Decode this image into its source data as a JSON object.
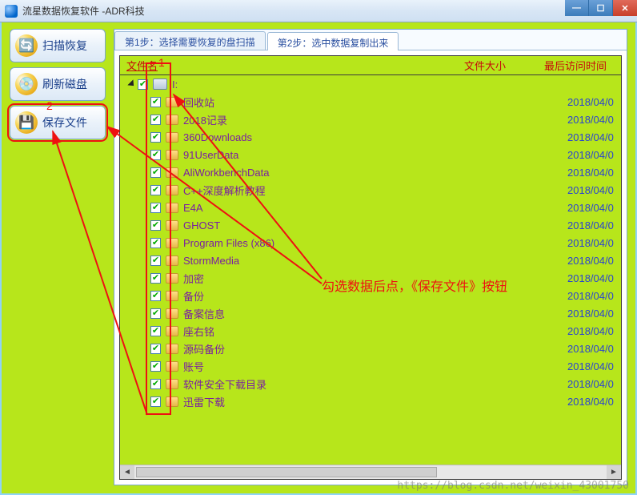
{
  "window": {
    "title": "流星数据恢复软件   -ADR科技"
  },
  "sidebar": {
    "buttons": [
      {
        "label": "扫描恢复",
        "icon_glyph": "🔄"
      },
      {
        "label": "刷新磁盘",
        "icon_glyph": "💿"
      },
      {
        "label": "保存文件",
        "icon_glyph": "💾"
      }
    ]
  },
  "tabs": {
    "0": {
      "label": "第1步：选择需要恢复的盘扫描"
    },
    "1": {
      "label": "第2步：选中数据复制出来"
    },
    "active": 1
  },
  "columns": {
    "name": "文件名",
    "size": "文件大小",
    "date": "最后访问时间"
  },
  "root_label": "I:",
  "files": [
    {
      "name": "回收站",
      "date": "2018/04/0"
    },
    {
      "name": "2018记录",
      "date": "2018/04/0"
    },
    {
      "name": "360Downloads",
      "date": "2018/04/0"
    },
    {
      "name": "91UserData",
      "date": "2018/04/0"
    },
    {
      "name": "AliWorkbenchData",
      "date": "2018/04/0"
    },
    {
      "name": "C++深度解析教程",
      "date": "2018/04/0"
    },
    {
      "name": "E4A",
      "date": "2018/04/0"
    },
    {
      "name": "GHOST",
      "date": "2018/04/0"
    },
    {
      "name": "Program Files (x86)",
      "date": "2018/04/0"
    },
    {
      "name": "StormMedia",
      "date": "2018/04/0"
    },
    {
      "name": "加密",
      "date": "2018/04/0"
    },
    {
      "name": "备份",
      "date": "2018/04/0"
    },
    {
      "name": "备案信息",
      "date": "2018/04/0"
    },
    {
      "name": "座右铭",
      "date": "2018/04/0"
    },
    {
      "name": "源码备份",
      "date": "2018/04/0"
    },
    {
      "name": "账号",
      "date": "2018/04/0"
    },
    {
      "name": "软件安全下载目录",
      "date": "2018/04/0"
    },
    {
      "name": "迅雷下载",
      "date": "2018/04/0"
    }
  ],
  "annotations": {
    "label1": "1",
    "label2": "2",
    "text": "勾选数据后点，《保存文件》按钮"
  },
  "watermark": "https://blog.csdn.net/weixin_43001750",
  "colors": {
    "accent_bg": "#b7e61b",
    "annotation": "#e11c1c",
    "link_text": "#7a1fa2",
    "date_text": "#2a44d0"
  }
}
